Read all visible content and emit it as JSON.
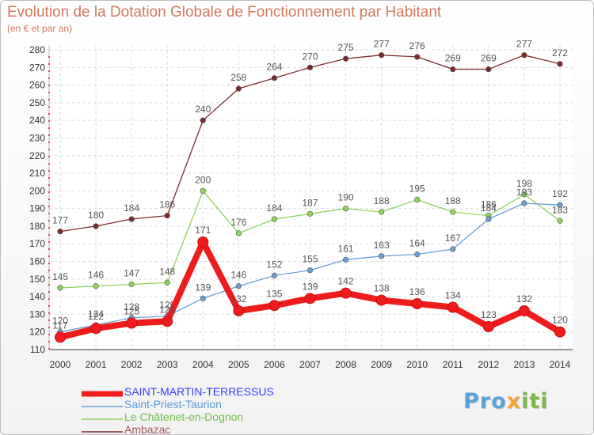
{
  "header": {
    "title": "Evolution de la Dotation Globale de Fonctionnement par Habitant",
    "subtitle": "(en € et par an)"
  },
  "logo": {
    "text": "Proxiti",
    "colors": [
      "#5aa3d6",
      "#f2a23a",
      "#7ab648"
    ]
  },
  "chart_data": {
    "type": "line",
    "title": "Evolution de la Dotation Globale de Fonctionnement par Habitant",
    "ylabel": "(en € et par an)",
    "xlabel": "",
    "x": [
      "2000",
      "2001",
      "2002",
      "2003",
      "2004",
      "2005",
      "2006",
      "2007",
      "2008",
      "2009",
      "2010",
      "2011",
      "2012",
      "2013",
      "2014"
    ],
    "ylim": [
      110,
      280
    ],
    "yticks": [
      110,
      120,
      130,
      140,
      150,
      160,
      170,
      180,
      190,
      200,
      210,
      220,
      230,
      240,
      250,
      260,
      270,
      280
    ],
    "grid": true,
    "legend_position": "bottom-left",
    "series": [
      {
        "name": "Ambazac",
        "color": "#7a2a2a",
        "values": [
          177,
          180,
          184,
          186,
          240,
          258,
          264,
          270,
          275,
          277,
          276,
          269,
          269,
          277,
          272
        ],
        "labels": [
          "177",
          "180",
          "184",
          "186",
          "240",
          "258",
          "264",
          "270",
          "275",
          "277",
          "276",
          "269",
          "269",
          "277",
          "272"
        ],
        "bold": false
      },
      {
        "name": "Le Châtenet-en-Dognon",
        "color": "#8fd35c",
        "values": [
          145,
          146,
          147,
          148,
          200,
          176,
          184,
          187,
          190,
          188,
          195,
          188,
          186,
          198,
          183
        ],
        "labels": [
          "145",
          "146",
          "147",
          "148",
          "200",
          "176",
          "184",
          "187",
          "190",
          "188",
          "195",
          "188",
          "186",
          "198",
          "183"
        ],
        "bold": false
      },
      {
        "name": "Saint-Priest-Taurion",
        "color": "#6a9fd4",
        "values": [
          120,
          124,
          128,
          129,
          139,
          146,
          152,
          155,
          161,
          163,
          164,
          167,
          184,
          193,
          192
        ],
        "labels": [
          "120",
          "124",
          "128",
          "129",
          "139",
          "146",
          "152",
          "155",
          "161",
          "163",
          "164",
          "167",
          "184",
          "193",
          "192"
        ],
        "bold": false
      },
      {
        "name": "SAINT-MARTIN-TERRESSUS",
        "color": "#ee1c1c",
        "values": [
          117,
          122,
          125,
          126,
          171,
          132,
          135,
          139,
          142,
          138,
          136,
          134,
          123,
          132,
          120
        ],
        "labels": [
          "117",
          "122",
          "125",
          "126",
          "171",
          "132",
          "135",
          "139",
          "142",
          "138",
          "136",
          "134",
          "123",
          "132",
          "120"
        ],
        "bold": true
      }
    ],
    "legend": [
      {
        "name": "SAINT-MARTIN-TERRESSUS",
        "color": "#ee1c1c",
        "label_color": "#3a3aff",
        "bold": true
      },
      {
        "name": "Saint-Priest-Taurion",
        "color": "#6a9fd4",
        "label_color": "#5a9bd8",
        "bold": false
      },
      {
        "name": "Le Châtenet-en-Dognon",
        "color": "#8fd35c",
        "label_color": "#6fbf44",
        "bold": false
      },
      {
        "name": "Ambazac",
        "color": "#7a2a2a",
        "label_color": "#a05a5a",
        "bold": false
      }
    ]
  }
}
